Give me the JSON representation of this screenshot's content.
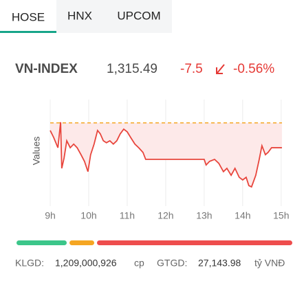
{
  "tabs": [
    "HOSE",
    "HNX",
    "UPCOM"
  ],
  "index": {
    "name": "VN-INDEX",
    "value": "1,315.49",
    "change": "-7.5",
    "percent": "-0.56%"
  },
  "chart_data": {
    "type": "line",
    "y_label": "Values",
    "x": [
      9.0,
      9.09,
      9.2,
      9.27,
      9.3,
      9.36,
      9.43,
      9.52,
      9.61,
      9.7,
      9.8,
      9.89,
      9.98,
      10.05,
      10.14,
      10.23,
      10.3,
      10.38,
      10.46,
      10.55,
      10.64,
      10.73,
      10.82,
      10.91,
      11.0,
      11.09,
      11.2,
      11.3,
      11.41,
      11.48,
      12.0,
      13.0,
      13.05,
      13.14,
      13.27,
      13.38,
      13.5,
      13.59,
      13.7,
      13.8,
      13.91,
      14.0,
      14.09,
      14.16,
      14.23,
      14.34,
      14.43,
      14.5,
      14.59,
      14.66,
      14.75,
      15.02
    ],
    "series": [
      {
        "color": "#e8453c",
        "values": [
          1320.7,
          1318.6,
          1315.5,
          1323.2,
          1309.3,
          1312.4,
          1317.6,
          1315.5,
          1316.6,
          1315.5,
          1313.4,
          1311.4,
          1308.3,
          1313.4,
          1316.6,
          1320.7,
          1319.7,
          1317.6,
          1317.0,
          1317.6,
          1316.6,
          1317.6,
          1319.7,
          1321.1,
          1320.3,
          1318.6,
          1316.6,
          1315.5,
          1314.1,
          1312.0,
          1312.0,
          1312.0,
          1310.3,
          1311.4,
          1312.0,
          1310.8,
          1308.3,
          1309.3,
          1307.2,
          1309.3,
          1306.6,
          1305.8,
          1306.6,
          1304.1,
          1303.7,
          1307.2,
          1312.0,
          1316.1,
          1313.4,
          1314.1,
          1315.5,
          1315.5
        ]
      }
    ],
    "reference": 1322.99,
    "reference_color": "#f5a623",
    "fill_color": "#fde9e9",
    "xlim": [
      9,
      15.2
    ],
    "ylim": [
      1300,
      1330
    ],
    "xticks": [
      {
        "value": 9,
        "label": "9h"
      },
      {
        "value": 10,
        "label": "10h"
      },
      {
        "value": 11,
        "label": "11h"
      },
      {
        "value": 12,
        "label": "12h"
      },
      {
        "value": 13,
        "label": "13h"
      },
      {
        "value": 14,
        "label": "14h"
      },
      {
        "value": 15,
        "label": "15h"
      }
    ],
    "grid": true
  },
  "breadth": {
    "values": [
      73,
      36,
      284
    ],
    "colors": [
      "#3cc68a",
      "#f5a623",
      "#ee4d4d"
    ]
  },
  "footer": {
    "volume_label": "KLGD:",
    "volume": "1,209,000,926",
    "volume_unit": "cp",
    "value_label": "GTGD:",
    "value": "27,143.98",
    "value_unit": "tỷ VNĐ"
  }
}
